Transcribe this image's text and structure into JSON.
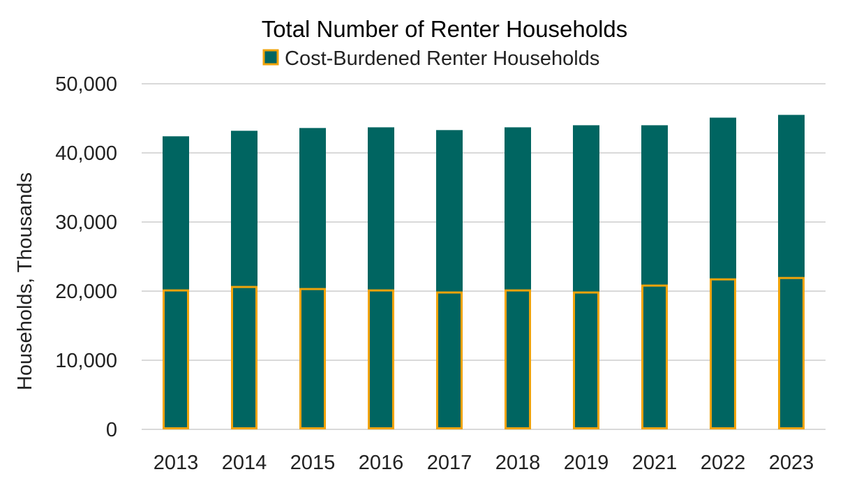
{
  "chart_data": {
    "type": "bar",
    "title": "Total Number of Renter Households",
    "ylabel": "Households, Thousands",
    "xlabel": "",
    "categories": [
      "2013",
      "2014",
      "2015",
      "2016",
      "2017",
      "2018",
      "2019",
      "2021",
      "2022",
      "2023"
    ],
    "series": [
      {
        "values": [
          42400,
          43200,
          43600,
          43700,
          43300,
          43700,
          44000,
          44000,
          45100,
          45500
        ]
      },
      {
        "name": "Cost-Burdened Renter Households",
        "values": [
          20100,
          20600,
          20300,
          20100,
          19800,
          20100,
          19800,
          20800,
          21700,
          21900
        ]
      }
    ],
    "ylim": [
      0,
      50000
    ],
    "yticks": [
      0,
      10000,
      20000,
      30000,
      40000,
      50000
    ],
    "ytick_labels": [
      "0",
      "10,000",
      "20,000",
      "30,000",
      "40,000",
      "50,000"
    ],
    "grid": true,
    "legend": "top-center",
    "colors": {
      "total_fill": "#006561",
      "burdened_outline": "#f0a30a"
    }
  }
}
